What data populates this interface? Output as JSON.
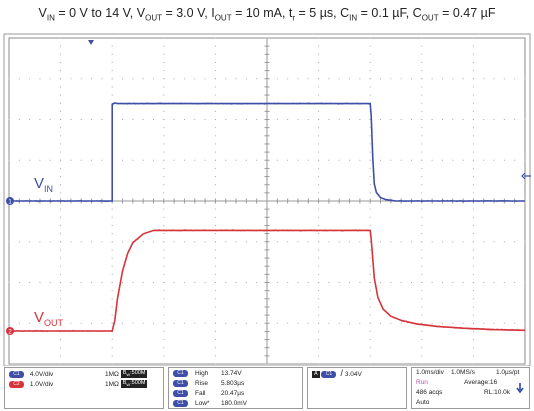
{
  "title": {
    "parts": [
      {
        "t": "V"
      },
      {
        "sub": "IN"
      },
      {
        "t": " = 0 V to 14 V, V"
      },
      {
        "sub": "OUT"
      },
      {
        "t": " = 3.0 V, I"
      },
      {
        "sub": "OUT"
      },
      {
        "t": " = 10 mA, t"
      },
      {
        "sub": "r"
      },
      {
        "t": " = 5 µs, C"
      },
      {
        "sub": "IN"
      },
      {
        "t": " = 0.1 µF, C"
      },
      {
        "sub": "OUT"
      },
      {
        "t": " = 0.47 µF"
      }
    ]
  },
  "traces": {
    "vin_label_main": "V",
    "vin_label_sub": "IN",
    "vout_label_main": "V",
    "vout_label_sub": "OUT",
    "ch1_marker": "1",
    "ch2_marker": "2"
  },
  "chart_data": {
    "type": "line",
    "x_unit": "divisions",
    "xlim": [
      0,
      10
    ],
    "ylim": [
      -4,
      4
    ],
    "grid": true,
    "series": [
      {
        "name": "VIN",
        "color": "#3f4fa8",
        "x": [
          0,
          2.0,
          2.0,
          2.05,
          2.1,
          7.0,
          7.02,
          7.05,
          7.08,
          7.12,
          7.2,
          7.3,
          7.5,
          10
        ],
        "y": [
          0,
          0,
          3.4,
          3.45,
          3.43,
          3.43,
          3.0,
          1.5,
          0.6,
          0.3,
          0.12,
          0.05,
          0.0,
          0
        ]
      },
      {
        "name": "VOUT",
        "color": "#d6333a",
        "x": [
          0,
          2.0,
          2.05,
          2.1,
          2.2,
          2.3,
          2.4,
          2.6,
          2.8,
          7.0,
          7.02,
          7.08,
          7.15,
          7.25,
          7.4,
          7.6,
          7.9,
          8.3,
          8.8,
          9.4,
          10
        ],
        "y": [
          0,
          0,
          0.3,
          0.9,
          1.7,
          2.2,
          2.5,
          2.75,
          2.85,
          2.85,
          2.6,
          1.5,
          0.95,
          0.62,
          0.42,
          0.3,
          0.2,
          0.13,
          0.08,
          0.04,
          0.02
        ]
      }
    ]
  },
  "channels": [
    {
      "tag": "C1",
      "scale": "4.0V/div",
      "impedance": "1MΩ",
      "bw_prefix": "B",
      "bw_sub": "W",
      "bw_val": ":500M"
    },
    {
      "tag": "C2",
      "scale": "1.0V/div",
      "impedance": "1MΩ",
      "bw_prefix": "B",
      "bw_sub": "W",
      "bw_val": ":500M"
    }
  ],
  "measurements": [
    {
      "tag": "C1",
      "label": "High",
      "value": "13.74V"
    },
    {
      "tag": "C1",
      "label": "Rise",
      "value": "5.803µs"
    },
    {
      "tag": "C1",
      "label": "Fall",
      "value": "20.47µs"
    },
    {
      "tag": "C1",
      "label": "Low*",
      "value": "180.0mV"
    }
  ],
  "trigger": {
    "prefix": "A",
    "tag": "C1",
    "slope": "/",
    "level": "3.04V"
  },
  "timebase": {
    "time_div": "1.0ms/div",
    "sample_rate": "1.0MS/s",
    "per_pt": "1.0µs/pt",
    "state": "Run",
    "average": "Average:16",
    "acqs": "486 acqs",
    "record_length": "RL:10.0k",
    "mode": "Auto"
  },
  "colors": {
    "vin": "#3f4fa8",
    "vout": "#d6333a",
    "grid_border": "#8c8c8c",
    "panel_bg": "#e9e9e9"
  }
}
